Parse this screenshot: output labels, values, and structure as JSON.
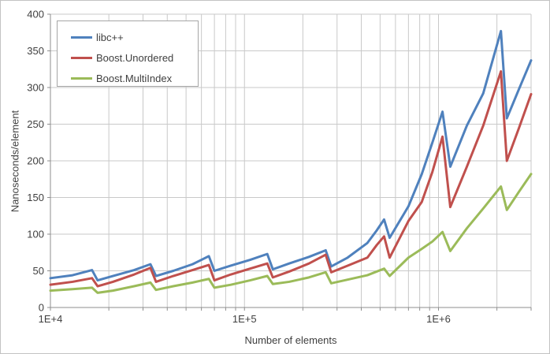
{
  "colors": {
    "background": "#ffffff",
    "chart_border": "#c3c3c3",
    "grid": "#c9c9c9",
    "axis_line": "#8e8e8e",
    "tick": "#8e8e8e",
    "text": "#3f3f3f",
    "legend_border": "#a6a6a6"
  },
  "chart_data": {
    "type": "line",
    "title": "",
    "xlabel": "Number of elements",
    "ylabel": "Nanoseconds/element",
    "x_scale": "log",
    "x_range": [
      10000,
      3000000
    ],
    "y_range": [
      0,
      400
    ],
    "grid": true,
    "legend_position": "top-left",
    "x_major_ticks": [
      {
        "label": "1E+4",
        "value": 10000
      },
      {
        "label": "1E+5",
        "value": 100000
      },
      {
        "label": "1E+6",
        "value": 1000000
      }
    ],
    "y_ticks": [
      0,
      50,
      100,
      150,
      200,
      250,
      300,
      350,
      400
    ],
    "x": [
      10000,
      13000,
      16384,
      17500,
      21000,
      27000,
      32768,
      35000,
      43000,
      54000,
      65536,
      70000,
      85000,
      107000,
      131072,
      140000,
      170000,
      215000,
      262144,
      280000,
      340000,
      430000,
      480000,
      524288,
      560000,
      700000,
      820000,
      930000,
      1048576,
      1150000,
      1400000,
      1700000,
      2097152,
      2250000,
      2600000,
      3000000
    ],
    "series": [
      {
        "name": "libc++",
        "color": "#4f81bd",
        "values": [
          40,
          44,
          51,
          37,
          43,
          51,
          59,
          43,
          50,
          59,
          70,
          50,
          57,
          65,
          73,
          52,
          60,
          69,
          78,
          56,
          68,
          88,
          105,
          120,
          95,
          138,
          182,
          225,
          267,
          192,
          248,
          292,
          377,
          258,
          298,
          337
        ]
      },
      {
        "name": "Boost.Unordered",
        "color": "#c0504d",
        "values": [
          31,
          35,
          40,
          29,
          35,
          45,
          54,
          35,
          43,
          51,
          58,
          37,
          45,
          53,
          60,
          41,
          49,
          60,
          72,
          48,
          57,
          68,
          85,
          97,
          68,
          118,
          144,
          185,
          233,
          137,
          192,
          248,
          322,
          200,
          245,
          291
        ]
      },
      {
        "name": "Boost.MultiIndex",
        "color": "#9bbb59",
        "values": [
          23,
          25,
          27,
          20,
          23,
          29,
          34,
          24,
          29,
          34,
          39,
          27,
          31,
          37,
          43,
          32,
          35,
          41,
          48,
          33,
          38,
          44,
          49,
          53,
          43,
          68,
          80,
          90,
          103,
          77,
          108,
          135,
          165,
          133,
          158,
          182
        ]
      }
    ]
  }
}
